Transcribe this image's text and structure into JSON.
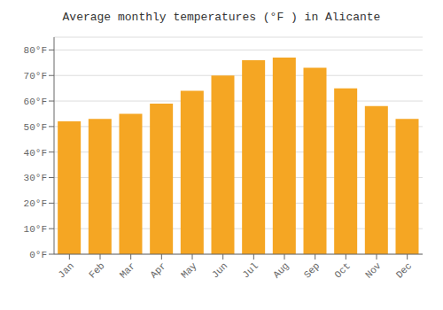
{
  "chart_data": {
    "type": "bar",
    "title": "Average monthly temperatures (°F ) in Alicante",
    "categories": [
      "Jan",
      "Feb",
      "Mar",
      "Apr",
      "May",
      "Jun",
      "Jul",
      "Aug",
      "Sep",
      "Oct",
      "Nov",
      "Dec"
    ],
    "values": [
      52,
      53,
      55,
      59,
      64,
      70,
      76,
      77,
      73,
      65,
      58,
      53
    ],
    "color": "#F5A623",
    "ylim": [
      0,
      85
    ],
    "yticks": [
      {
        "value": 0,
        "label": "0°F"
      },
      {
        "value": 10,
        "label": "10°F"
      },
      {
        "value": 20,
        "label": "20°F"
      },
      {
        "value": 30,
        "label": "30°F"
      },
      {
        "value": 40,
        "label": "40°F"
      },
      {
        "value": 50,
        "label": "50°F"
      },
      {
        "value": 60,
        "label": "60°F"
      },
      {
        "value": 70,
        "label": "70°F"
      },
      {
        "value": 80,
        "label": "80°F"
      }
    ],
    "grid": true
  }
}
